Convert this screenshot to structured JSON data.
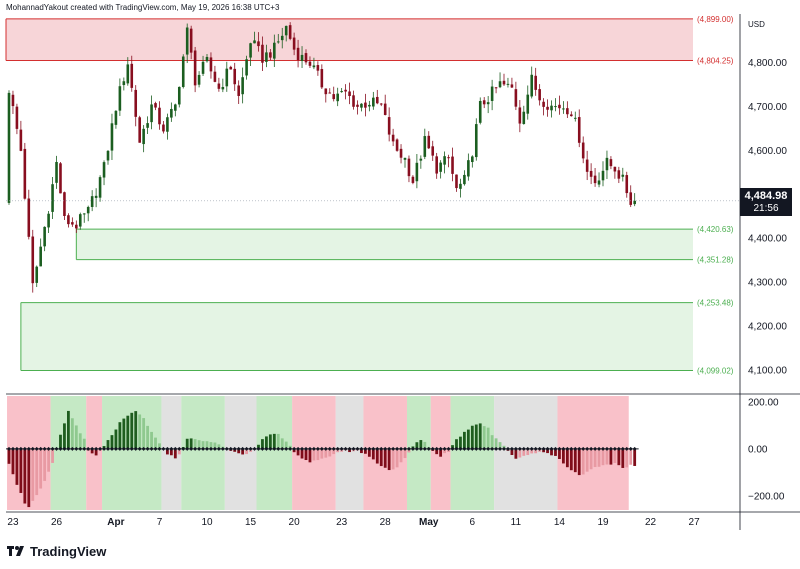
{
  "attribution": "MohannadYakout created with TradingView.com, May 19, 2026 16:38 UTC+3",
  "branding": {
    "name": "TradingView",
    "logo_icon": "tradingview-logo-icon"
  },
  "currency_label": "USD",
  "last_price": {
    "value": "4,484.98",
    "countdown": "21:56"
  },
  "colors": {
    "up_candle": "#1b5e20",
    "down_candle": "#880e1f",
    "resistance_line": "#d32f2f",
    "resistance_fill": "#f4c7cb",
    "support_line": "#4caf50",
    "support_fill": "#dff2df",
    "osc_pos_strong": "#1e5d1e",
    "osc_pos_weak": "#8fc98f",
    "osc_neg_strong": "#7f0d1a",
    "osc_neg_weak": "#e89aa3",
    "bg_green": "#b7e3b7",
    "bg_red": "#f7b2bb",
    "bg_gray": "#d9d9d9"
  },
  "chart_data": [
    {
      "type": "candlestick",
      "title": "",
      "y_axis_label": "USD",
      "ylim": [
        4050,
        4910
      ],
      "y_ticks": [
        4100,
        4200,
        4300,
        4400,
        4500,
        4600,
        4700,
        4800
      ],
      "y_tick_labels": [
        "4,100.00",
        "4,200.00",
        "4,300.00",
        "4,400.00",
        "4,500.00",
        "4,600.00",
        "4,700.00",
        "4,800.00"
      ],
      "x_ticks": [
        "23",
        "26",
        "Apr",
        "7",
        "10",
        "15",
        "20",
        "23",
        "28",
        "May",
        "6",
        "11",
        "14",
        "19",
        "22",
        "27"
      ],
      "x_range_bars": [
        0,
        159
      ],
      "x_tick_bars": [
        1,
        12,
        27,
        38,
        50,
        61,
        72,
        84,
        95,
        106,
        117,
        128,
        139,
        150,
        162,
        173
      ],
      "close_path": [
        [
          0,
          4740
        ],
        [
          3,
          4600
        ],
        [
          6,
          4290
        ],
        [
          8,
          4380
        ],
        [
          10,
          4470
        ],
        [
          12,
          4570
        ],
        [
          14,
          4440
        ],
        [
          17,
          4430
        ],
        [
          20,
          4460
        ],
        [
          24,
          4560
        ],
        [
          27,
          4700
        ],
        [
          30,
          4800
        ],
        [
          33,
          4620
        ],
        [
          36,
          4700
        ],
        [
          39,
          4650
        ],
        [
          42,
          4700
        ],
        [
          45,
          4870
        ],
        [
          47,
          4760
        ],
        [
          50,
          4800
        ],
        [
          53,
          4740
        ],
        [
          56,
          4790
        ],
        [
          58,
          4720
        ],
        [
          61,
          4850
        ],
        [
          64,
          4810
        ],
        [
          67,
          4830
        ],
        [
          70,
          4880
        ],
        [
          72,
          4830
        ],
        [
          74,
          4810
        ],
        [
          76,
          4800
        ],
        [
          79,
          4750
        ],
        [
          82,
          4720
        ],
        [
          85,
          4730
        ],
        [
          88,
          4700
        ],
        [
          91,
          4710
        ],
        [
          94,
          4700
        ],
        [
          97,
          4610
        ],
        [
          100,
          4580
        ],
        [
          102,
          4530
        ],
        [
          105,
          4620
        ],
        [
          108,
          4560
        ],
        [
          111,
          4580
        ],
        [
          113,
          4510
        ],
        [
          115,
          4530
        ],
        [
          117,
          4600
        ],
        [
          119,
          4700
        ],
        [
          122,
          4730
        ],
        [
          124,
          4750
        ],
        [
          127,
          4740
        ],
        [
          129,
          4670
        ],
        [
          132,
          4760
        ],
        [
          134,
          4720
        ],
        [
          137,
          4700
        ],
        [
          140,
          4700
        ],
        [
          142,
          4690
        ],
        [
          144,
          4630
        ],
        [
          146,
          4550
        ],
        [
          148,
          4530
        ],
        [
          151,
          4570
        ],
        [
          153,
          4560
        ],
        [
          155,
          4530
        ],
        [
          157,
          4484.98
        ]
      ],
      "levels": [
        {
          "label": "(4,899.00)",
          "value": 4899.0,
          "kind": "resistance"
        },
        {
          "label": "(4,804.25)",
          "value": 4804.25,
          "kind": "resistance"
        },
        {
          "label": "(4,420.63)",
          "value": 4420.63,
          "kind": "support"
        },
        {
          "label": "(4,351.28)",
          "value": 4351.28,
          "kind": "support"
        },
        {
          "label": "(4,253.48)",
          "value": 4253.48,
          "kind": "support"
        },
        {
          "label": "(4,099.02)",
          "value": 4099.02,
          "kind": "support"
        }
      ],
      "zones": [
        {
          "kind": "resistance",
          "from": 4804.25,
          "to": 4899.0,
          "start_bar": -1
        },
        {
          "kind": "support",
          "from": 4351.28,
          "to": 4420.63,
          "start_bar": 17
        },
        {
          "kind": "support",
          "from": 4099.02,
          "to": 4253.48,
          "start_bar": 3
        }
      ],
      "last_price": 4484.98
    },
    {
      "type": "histogram",
      "title": "",
      "ylim": [
        -260,
        225
      ],
      "y_ticks": [
        200,
        0,
        -200
      ],
      "y_tick_labels": [
        "200.00",
        "0.00",
        "−200.00"
      ],
      "regimes": [
        {
          "from": 0,
          "to": 11,
          "state": "red"
        },
        {
          "from": 11,
          "to": 20,
          "state": "green"
        },
        {
          "from": 20,
          "to": 24,
          "state": "red"
        },
        {
          "from": 24,
          "to": 39,
          "state": "green"
        },
        {
          "from": 39,
          "to": 44,
          "state": "gray"
        },
        {
          "from": 44,
          "to": 55,
          "state": "green"
        },
        {
          "from": 55,
          "to": 63,
          "state": "gray"
        },
        {
          "from": 63,
          "to": 72,
          "state": "green"
        },
        {
          "from": 72,
          "to": 83,
          "state": "red"
        },
        {
          "from": 83,
          "to": 90,
          "state": "gray"
        },
        {
          "from": 90,
          "to": 101,
          "state": "red"
        },
        {
          "from": 101,
          "to": 107,
          "state": "green"
        },
        {
          "from": 107,
          "to": 112,
          "state": "red"
        },
        {
          "from": 112,
          "to": 123,
          "state": "green"
        },
        {
          "from": 123,
          "to": 139,
          "state": "gray"
        },
        {
          "from": 139,
          "to": 157,
          "state": "red"
        }
      ],
      "value_path": [
        [
          0,
          -60
        ],
        [
          2,
          -150
        ],
        [
          4,
          -230
        ],
        [
          5,
          -245
        ],
        [
          7,
          -200
        ],
        [
          9,
          -140
        ],
        [
          11,
          -60
        ],
        [
          13,
          60
        ],
        [
          15,
          160
        ],
        [
          17,
          100
        ],
        [
          19,
          40
        ],
        [
          20,
          -10
        ],
        [
          22,
          -30
        ],
        [
          24,
          10
        ],
        [
          26,
          60
        ],
        [
          28,
          110
        ],
        [
          30,
          140
        ],
        [
          32,
          160
        ],
        [
          34,
          130
        ],
        [
          36,
          70
        ],
        [
          38,
          20
        ],
        [
          40,
          -20
        ],
        [
          42,
          -40
        ],
        [
          43,
          -20
        ],
        [
          44,
          10
        ],
        [
          45,
          40
        ],
        [
          47,
          45
        ],
        [
          49,
          30
        ],
        [
          51,
          30
        ],
        [
          53,
          20
        ],
        [
          55,
          0
        ],
        [
          58,
          -20
        ],
        [
          60,
          -20
        ],
        [
          62,
          0
        ],
        [
          64,
          40
        ],
        [
          66,
          60
        ],
        [
          68,
          60
        ],
        [
          70,
          30
        ],
        [
          72,
          -10
        ],
        [
          74,
          -40
        ],
        [
          76,
          -55
        ],
        [
          78,
          -50
        ],
        [
          80,
          -40
        ],
        [
          82,
          -20
        ],
        [
          84,
          -10
        ],
        [
          88,
          -10
        ],
        [
          90,
          -20
        ],
        [
          93,
          -60
        ],
        [
          96,
          -90
        ],
        [
          98,
          -80
        ],
        [
          100,
          -40
        ],
        [
          102,
          10
        ],
        [
          104,
          40
        ],
        [
          105,
          30
        ],
        [
          107,
          -10
        ],
        [
          109,
          -30
        ],
        [
          111,
          -10
        ],
        [
          113,
          40
        ],
        [
          115,
          70
        ],
        [
          117,
          100
        ],
        [
          119,
          110
        ],
        [
          121,
          90
        ],
        [
          122,
          60
        ],
        [
          124,
          30
        ],
        [
          126,
          -10
        ],
        [
          128,
          -40
        ],
        [
          130,
          -30
        ],
        [
          132,
          -20
        ],
        [
          134,
          -10
        ],
        [
          136,
          -20
        ],
        [
          138,
          -30
        ],
        [
          140,
          -60
        ],
        [
          142,
          -90
        ],
        [
          144,
          -110
        ],
        [
          146,
          -100
        ],
        [
          148,
          -80
        ],
        [
          151,
          -70
        ],
        [
          153,
          -60
        ],
        [
          155,
          -80
        ],
        [
          157,
          -70
        ]
      ]
    }
  ]
}
